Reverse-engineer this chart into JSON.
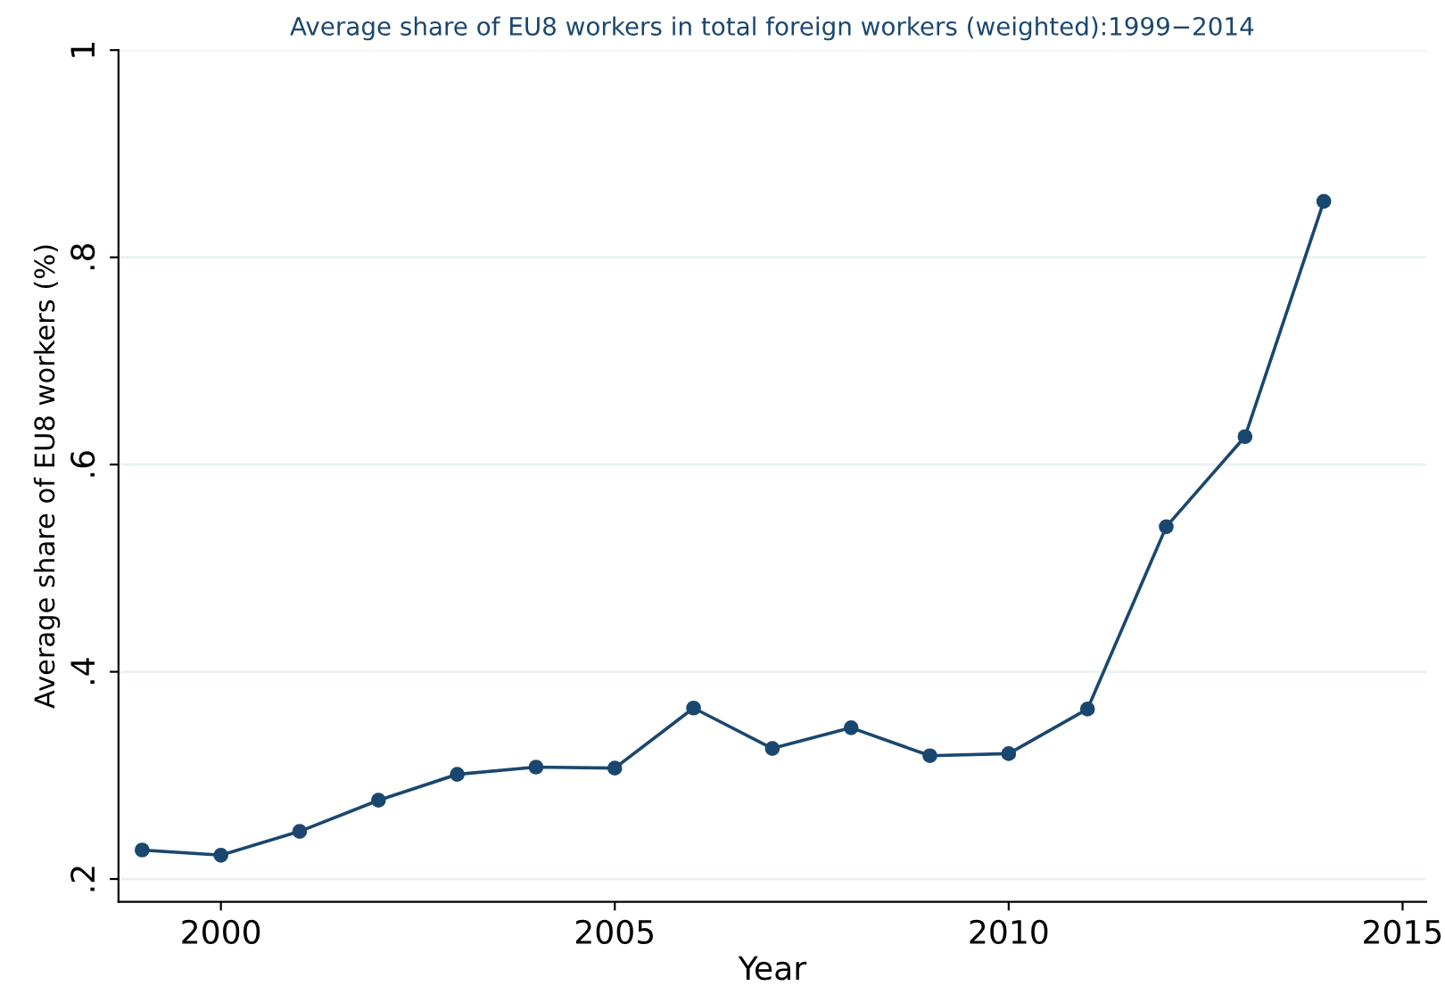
{
  "chart_data": {
    "type": "line",
    "title": "Average share of EU8 workers in total foreign workers (weighted):1999−2014",
    "xlabel": "Year",
    "ylabel": "Average share of EU8 workers (%)",
    "x": [
      1999,
      2000,
      2001,
      2002,
      2003,
      2004,
      2005,
      2006,
      2007,
      2008,
      2009,
      2010,
      2011,
      2012,
      2013,
      2014
    ],
    "series": [
      {
        "color": "#1a476f",
        "values": [
          0.228,
          0.223,
          0.246,
          0.276,
          0.301,
          0.308,
          0.307,
          0.365,
          0.326,
          0.346,
          0.319,
          0.321,
          0.364,
          0.54,
          0.627,
          0.854
        ]
      }
    ],
    "xlim": [
      1998.7,
      2015.3
    ],
    "ylim": [
      0.178,
      1.0
    ],
    "xticks": [
      2000,
      2005,
      2010,
      2015
    ],
    "yticks": [
      {
        "value": 0.2,
        "label": ".2"
      },
      {
        "value": 0.4,
        "label": ".4"
      },
      {
        "value": 0.6,
        "label": ".6"
      },
      {
        "value": 0.8,
        "label": ".8"
      },
      {
        "value": 1,
        "label": "1"
      }
    ],
    "grid": "y",
    "marker": "circle",
    "line_style": "solid"
  }
}
